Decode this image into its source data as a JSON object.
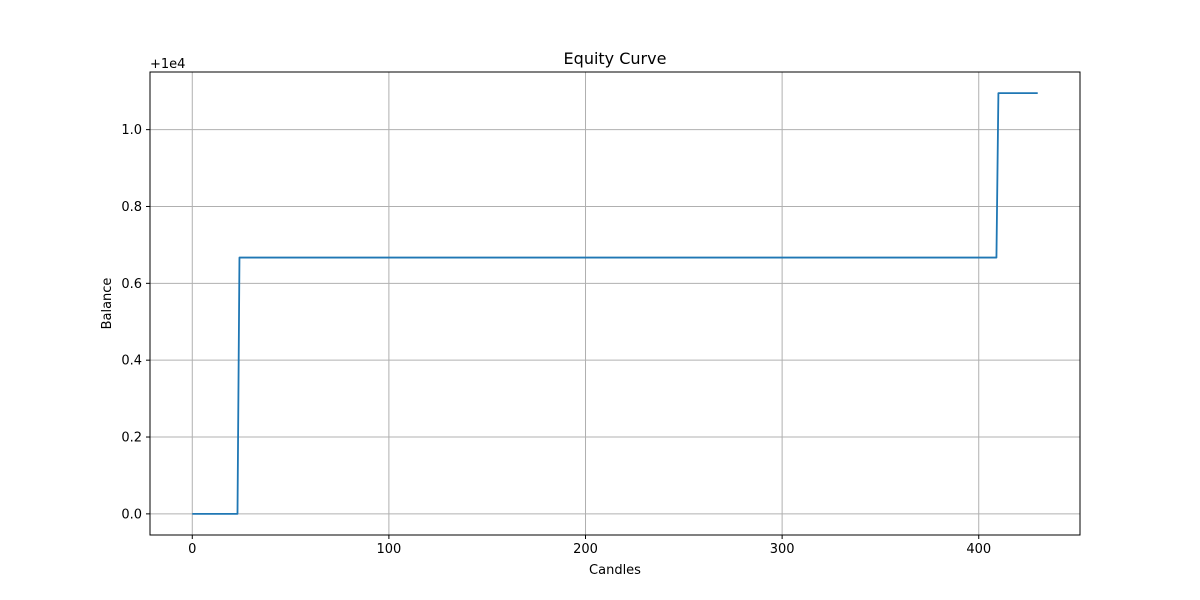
{
  "chart_data": {
    "type": "line",
    "title": "Equity Curve",
    "xlabel": "Candles",
    "ylabel": "Balance",
    "offset_label": "+1e4",
    "xlim": [
      -21.5,
      451.5
    ],
    "ylim": [
      -0.055,
      1.15
    ],
    "xticks": [
      0,
      100,
      200,
      300,
      400
    ],
    "xtick_labels": [
      "0",
      "100",
      "200",
      "300",
      "400"
    ],
    "yticks": [
      0.0,
      0.2,
      0.4,
      0.6,
      0.8,
      1.0
    ],
    "ytick_labels": [
      "0.0",
      "0.2",
      "0.4",
      "0.6",
      "0.8",
      "1.0"
    ],
    "grid": true,
    "series": [
      {
        "color": "#1f77b4",
        "x": [
          0,
          23,
          24,
          409,
          410,
          430
        ],
        "y": [
          0.0,
          0.0,
          0.667,
          0.667,
          1.095,
          1.095
        ]
      }
    ]
  }
}
